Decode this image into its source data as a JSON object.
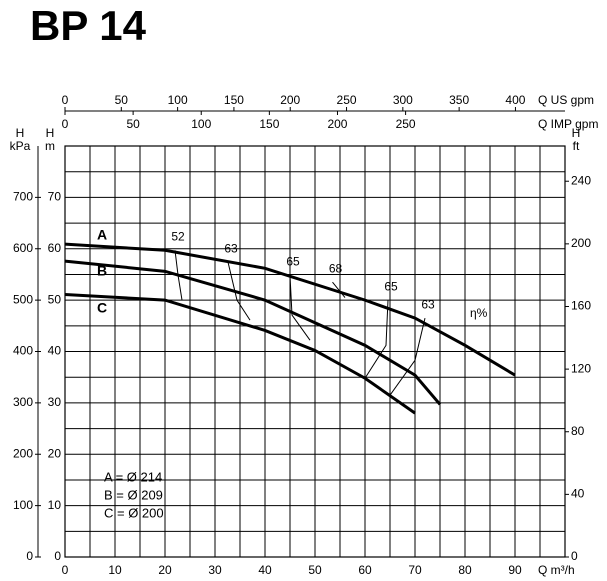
{
  "title": "BP 14",
  "chart_data": {
    "type": "line",
    "x_label": "Q m³/h",
    "xlim": [
      0,
      100
    ],
    "xticks": [
      0,
      10,
      20,
      30,
      40,
      50,
      60,
      70,
      80,
      90
    ],
    "y_label": [
      "H",
      "m"
    ],
    "ylim": [
      0,
      80
    ],
    "yticks": [
      0,
      10,
      20,
      30,
      40,
      50,
      60,
      70
    ],
    "grid": true,
    "kpa_axis": {
      "label": [
        "H",
        "kPa"
      ],
      "lim": [
        0,
        800
      ],
      "ticks": [
        0,
        100,
        200,
        300,
        400,
        500,
        600,
        700
      ]
    },
    "ft_axis": {
      "label": [
        "H",
        "ft"
      ],
      "lim": [
        0,
        262.5
      ],
      "ticks": [
        0,
        40,
        80,
        120,
        160,
        200,
        240
      ]
    },
    "us_gpm_axis": {
      "label": "Q US gpm",
      "lim": [
        0,
        444
      ],
      "ticks": [
        0,
        50,
        100,
        150,
        200,
        250,
        300,
        350,
        400
      ]
    },
    "imp_gpm_axis": {
      "label": "Q IMP gpm",
      "lim": [
        0,
        367
      ],
      "ticks": [
        0,
        50,
        100,
        150,
        200,
        250
      ]
    },
    "series": [
      {
        "name": "A",
        "color": "#000000",
        "x": [
          0,
          20,
          40,
          60,
          70,
          80,
          90
        ],
        "values": [
          60.9,
          59.7,
          56.2,
          50,
          46.5,
          41.2,
          35.4
        ]
      },
      {
        "name": "B",
        "color": "#000000",
        "x": [
          0,
          20,
          40,
          60,
          70,
          75
        ],
        "values": [
          57.6,
          55.6,
          50,
          41.2,
          35.4,
          29.7
        ]
      },
      {
        "name": "C",
        "color": "#000000",
        "x": [
          0,
          20,
          40,
          50,
          60,
          70
        ],
        "values": [
          51.1,
          50,
          44.1,
          40.2,
          34.8,
          28
        ]
      }
    ],
    "efficiency_label": "η%",
    "efficiency_curves": [
      {
        "label": "52",
        "x": [
          22,
          22.6,
          23.4
        ],
        "values": [
          59.7,
          54.9,
          50
        ]
      },
      {
        "label": "63",
        "x": [
          32.6,
          34.4,
          37
        ],
        "values": [
          57.4,
          50,
          46.1
        ]
      },
      {
        "label": "65",
        "x": [
          45,
          45.4,
          49
        ],
        "values": [
          54.8,
          47.1,
          42.2
        ]
      },
      {
        "label": "68",
        "x": [
          53.5,
          56
        ],
        "values": [
          53.5,
          50.5
        ]
      },
      {
        "label": "65",
        "x": [
          64.6,
          64.2,
          60
        ],
        "values": [
          50,
          41.2,
          34.8
        ]
      },
      {
        "label": "63",
        "x": [
          72,
          70,
          65
        ],
        "values": [
          46.5,
          38.3,
          31.5
        ]
      }
    ],
    "legend_text": [
      "A = Ø 214",
      "B = Ø 209",
      "C = Ø 200"
    ]
  }
}
